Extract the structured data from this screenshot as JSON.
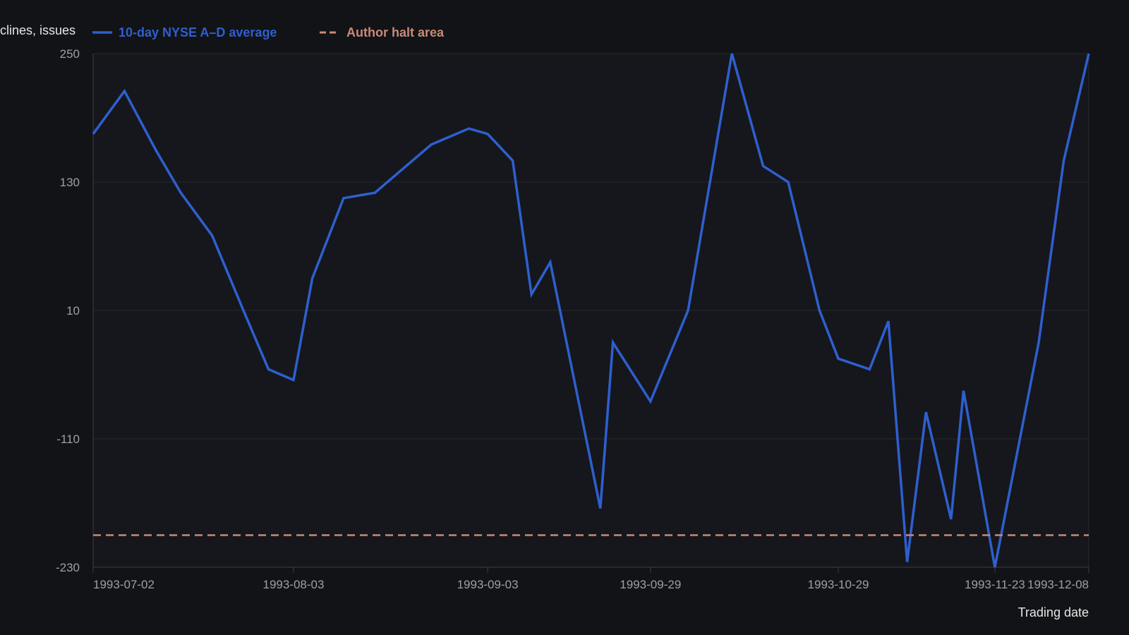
{
  "chart_data": {
    "type": "line",
    "title": "",
    "xlabel": "Trading date",
    "ylabel": "clines, issues",
    "ylim": [
      -230,
      250
    ],
    "yticks": [
      250,
      130,
      10,
      -110,
      -230
    ],
    "xticks": [
      "1993-07-02",
      "1993-08-03",
      "1993-09-03",
      "1993-09-29",
      "1993-10-29",
      "1993-11-23",
      "1993-12-08"
    ],
    "x_range": [
      "1993-07-02",
      "1993-12-08"
    ],
    "grid": true,
    "legend_position": "top-left",
    "series": [
      {
        "name": "10-day NYSE A–D average",
        "color": "#2f5fcf",
        "style": "solid",
        "x": [
          "1993-07-02",
          "1993-07-07",
          "1993-07-12",
          "1993-07-16",
          "1993-07-21",
          "1993-07-26",
          "1993-07-30",
          "1993-08-03",
          "1993-08-06",
          "1993-08-11",
          "1993-08-16",
          "1993-08-20",
          "1993-08-25",
          "1993-08-31",
          "1993-09-03",
          "1993-09-07",
          "1993-09-10",
          "1993-09-13",
          "1993-09-21",
          "1993-09-23",
          "1993-09-29",
          "1993-10-05",
          "1993-10-12",
          "1993-10-17",
          "1993-10-21",
          "1993-10-26",
          "1993-10-29",
          "1993-11-03",
          "1993-11-06",
          "1993-11-09",
          "1993-11-12",
          "1993-11-16",
          "1993-11-18",
          "1993-11-23",
          "1993-11-30",
          "1993-12-04",
          "1993-12-08"
        ],
        "values": [
          175,
          215,
          160,
          120,
          80,
          10,
          -45,
          -55,
          40,
          115,
          120,
          140,
          165,
          180,
          175,
          150,
          25,
          55,
          -175,
          -20,
          -75,
          10,
          250,
          145,
          130,
          10,
          -35,
          -45,
          0,
          -225,
          -85,
          -185,
          -65,
          -230,
          -20,
          150,
          250
        ]
      },
      {
        "name": "Author halt area",
        "color": "#c98a74",
        "style": "dashed",
        "x": [
          "1993-07-02",
          "1993-12-08"
        ],
        "values": [
          -200,
          -200
        ]
      }
    ]
  }
}
